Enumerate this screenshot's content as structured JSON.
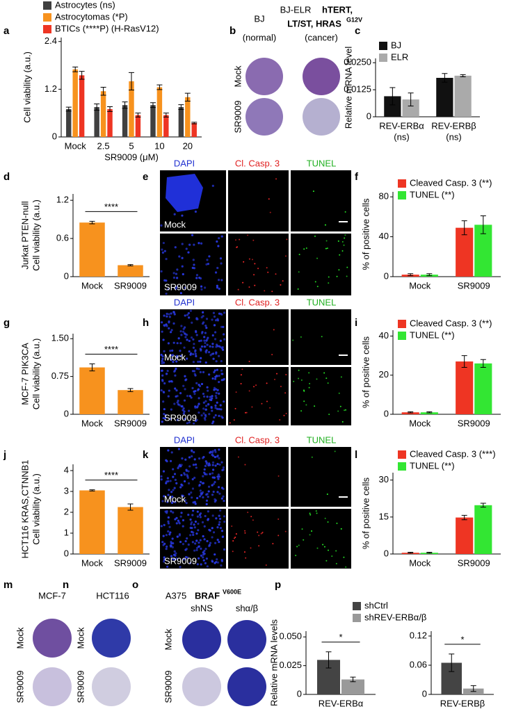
{
  "chart_data": [
    {
      "type": "bar",
      "categories": [
        "Mock",
        "2.5",
        "5",
        "10",
        "20"
      ],
      "xlabel": "SR9009 (μM)",
      "ylabel": [
        "Cell viability (a.u.)"
      ],
      "ylim": [
        0,
        2.5
      ],
      "yticks": [
        0,
        1.2,
        2.4
      ],
      "legend": true,
      "series": [
        {
          "name": "Astrocytes (ns)",
          "color": "#404040",
          "values": [
            0.7,
            0.75,
            0.8,
            0.8,
            0.75
          ],
          "errors": [
            0.05,
            0.08,
            0.08,
            0.06,
            0.06
          ]
        },
        {
          "name": "Astrocytomas (*P)",
          "color": "#f7921e",
          "values": [
            1.7,
            1.15,
            1.4,
            1.25,
            1.0
          ],
          "errors": [
            0.06,
            0.1,
            0.22,
            0.06,
            0.1
          ]
        },
        {
          "name": "BTICs (****P) (H-RasV12)",
          "color": "#ee3523",
          "values": [
            1.55,
            0.7,
            0.55,
            0.55,
            0.35
          ],
          "errors": [
            0.1,
            0.06,
            0.05,
            0.05,
            0.02
          ]
        }
      ]
    },
    {
      "type": "bar",
      "categories": [
        "REV-ERBα",
        "REV-ERBβ"
      ],
      "category_notes": [
        "(ns)",
        "(ns)"
      ],
      "ylabel": [
        "Relative mRNA level"
      ],
      "ylim": [
        0,
        0.027
      ],
      "yticks": [
        0,
        0.0125,
        {
          "value": 0.025,
          "label": "0.0250"
        }
      ],
      "legend": true,
      "series": [
        {
          "name": "BJ",
          "color": "#111111",
          "values": [
            0.0095,
            0.018
          ],
          "errors": [
            0.004,
            0.002
          ]
        },
        {
          "name": "ELR",
          "color": "#aaaaaa",
          "values": [
            0.008,
            0.019
          ],
          "errors": [
            0.003,
            0.0005
          ]
        }
      ]
    },
    {
      "type": "bar",
      "categories": [
        "Mock",
        "SR9009"
      ],
      "ylabel": [
        "Jurkat PTEN-null",
        "Cell viability (a.u.)"
      ],
      "ylim": [
        0,
        1.3
      ],
      "yticks": [
        0,
        0.6,
        1.2
      ],
      "significance": "****",
      "series": [
        {
          "color": "#f7921e",
          "values": [
            0.85,
            0.18
          ],
          "errors": [
            0.02,
            0.01
          ]
        }
      ]
    },
    {
      "type": "bar",
      "categories": [
        "Mock",
        "SR9009"
      ],
      "ylabel": [
        "% of positive cells"
      ],
      "ylim": [
        0,
        85
      ],
      "yticks": [
        0,
        40,
        80
      ],
      "legend": true,
      "series": [
        {
          "name": "Cleaved Casp. 3 (**)",
          "color": "#ee3523",
          "values": [
            2,
            49
          ],
          "errors": [
            1,
            7
          ]
        },
        {
          "name": "TUNEL (**)",
          "color": "#33e633",
          "values": [
            2,
            52
          ],
          "errors": [
            1,
            9
          ]
        }
      ]
    },
    {
      "type": "bar",
      "categories": [
        "Mock",
        "SR9009"
      ],
      "ylabel": [
        "MCF-7 PIK3CA",
        "Cell viability (a.u.)"
      ],
      "ylim": [
        0,
        1.6
      ],
      "yticks": [
        0,
        0.75,
        {
          "value": 1.5,
          "label": "1.50"
        }
      ],
      "significance": "****",
      "series": [
        {
          "color": "#f7921e",
          "values": [
            0.93,
            0.48
          ],
          "errors": [
            0.07,
            0.03
          ]
        }
      ]
    },
    {
      "type": "bar",
      "categories": [
        "Mock",
        "SR9009"
      ],
      "ylabel": [
        "% of positive cells"
      ],
      "ylim": [
        0,
        43
      ],
      "yticks": [
        0,
        20,
        40
      ],
      "legend": true,
      "series": [
        {
          "name": "Cleaved Casp. 3 (**)",
          "color": "#ee3523",
          "values": [
            1,
            27
          ],
          "errors": [
            0.3,
            3
          ]
        },
        {
          "name": "TUNEL (**)",
          "color": "#33e633",
          "values": [
            1,
            26
          ],
          "errors": [
            0.3,
            2
          ]
        }
      ]
    },
    {
      "type": "bar",
      "categories": [
        "Mock",
        "SR9009"
      ],
      "ylabel": [
        "HCT116 KRAS,CTNNB1",
        "Cell viability (a.u.)"
      ],
      "ylim": [
        0,
        4.3
      ],
      "yticks": [
        0,
        1,
        2,
        3,
        4
      ],
      "significance": "****",
      "series": [
        {
          "color": "#f7921e",
          "values": [
            3.05,
            2.25
          ],
          "errors": [
            0.03,
            0.15
          ]
        }
      ]
    },
    {
      "type": "bar",
      "categories": [
        "Mock",
        "SR9009"
      ],
      "ylabel": [
        "% of positive cells"
      ],
      "ylim": [
        0,
        33
      ],
      "yticks": [
        0,
        15,
        30
      ],
      "legend": true,
      "series": [
        {
          "name": "Cleaved Casp. 3 (***)",
          "color": "#ee3523",
          "values": [
            0.5,
            14.8
          ],
          "errors": [
            0.2,
            0.9
          ]
        },
        {
          "name": "TUNEL (**)",
          "color": "#33e633",
          "values": [
            0.5,
            19.8
          ],
          "errors": [
            0.2,
            0.8
          ]
        }
      ]
    },
    {
      "type": "bar",
      "categories": [
        "REV-ERBα"
      ],
      "ylabel": [
        "Relative mRNA levels"
      ],
      "ylim": [
        0,
        0.055
      ],
      "yticks": [
        0,
        0.025,
        {
          "value": 0.05,
          "label": "0.050"
        }
      ],
      "legend": true,
      "significance": "*",
      "series": [
        {
          "name": "shCtrl",
          "color": "#444444",
          "values": [
            0.03
          ],
          "errors": [
            0.007
          ]
        },
        {
          "name": "shREV-ERBα/β",
          "color": "#999999",
          "values": [
            0.013
          ],
          "errors": [
            0.002
          ]
        }
      ]
    },
    {
      "type": "bar",
      "categories": [
        "REV-ERBβ"
      ],
      "ylim": [
        0,
        0.13
      ],
      "yticks": [
        0,
        0.06,
        0.12
      ],
      "legend": false,
      "significance": "*",
      "series": [
        {
          "color": "#444444",
          "values": [
            0.065
          ],
          "errors": [
            0.018
          ]
        },
        {
          "color": "#999999",
          "values": [
            0.012
          ],
          "errors": [
            0.006
          ]
        }
      ]
    }
  ],
  "panel_letters": [
    "a",
    "b",
    "c",
    "d",
    "e",
    "f",
    "g",
    "h",
    "i",
    "j",
    "k",
    "l",
    "m",
    "n",
    "o",
    "p"
  ],
  "panel_b": {
    "bj": "BJ",
    "bj_note": "(normal)",
    "elr": "BJ-ELR",
    "elr_bold1": "hTERT,",
    "elr_bold2": "LT/ST, HRAS",
    "elr_sup": "G12V",
    "elr_note": "(cancer)"
  },
  "plate_rows": [
    "Mock",
    "SR9009"
  ],
  "microscopy": {
    "channels": [
      "DAPI",
      "Cl. Casp. 3",
      "TUNEL"
    ],
    "conditions": [
      "Mock",
      "SR9009"
    ]
  },
  "panel_m": {
    "title": "MCF-7"
  },
  "panel_n": {
    "title": "HCT116"
  },
  "panel_o": {
    "title": "A375",
    "title_bold": "BRAF",
    "title_sup": "V600E",
    "columns": [
      "shNS",
      "shα/β"
    ]
  }
}
